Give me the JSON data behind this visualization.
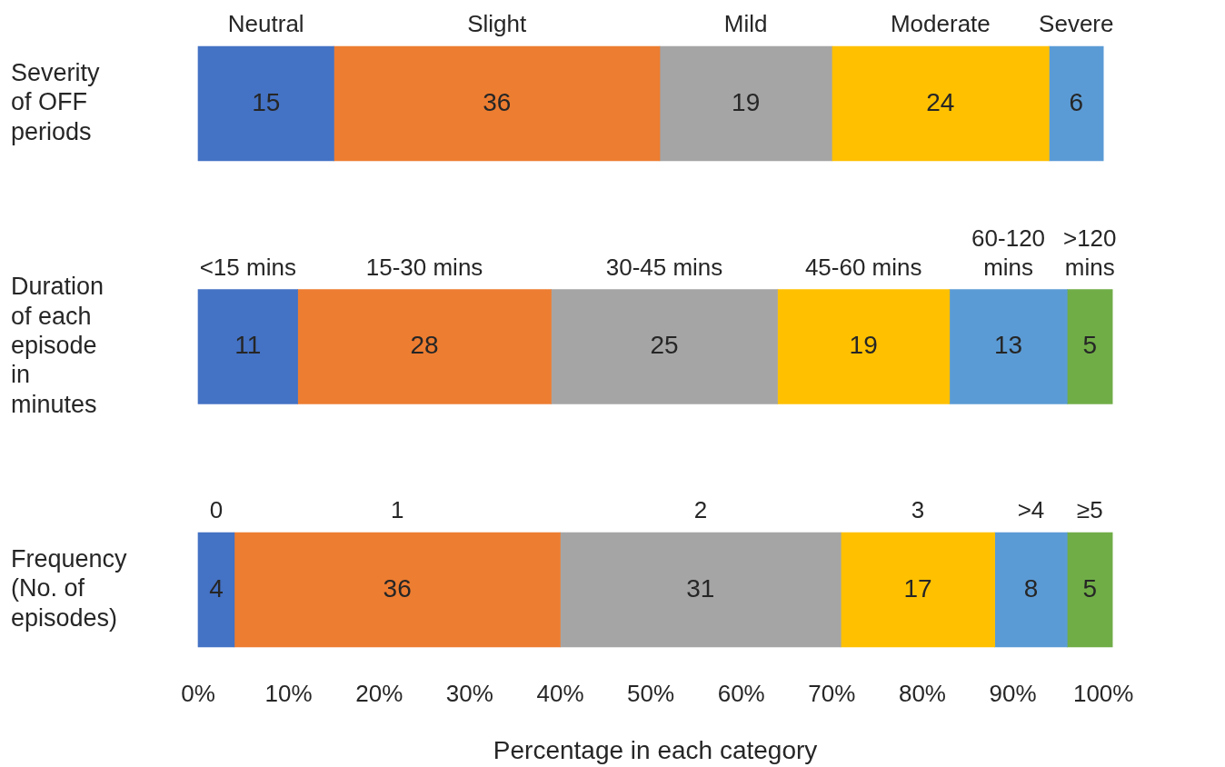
{
  "chart_data": {
    "type": "bar",
    "orientation": "horizontal",
    "stacked": true,
    "data_labels": true,
    "categories": [
      "Severity of OFF periods",
      "Duration of each episode in minutes",
      "Frequency (No. of episodes)"
    ],
    "xlim": [
      0,
      101
    ],
    "xlabel": "Percentage in each category",
    "xticks": [
      {
        "value": 0,
        "label": "0%"
      },
      {
        "value": 10,
        "label": "10%"
      },
      {
        "value": 20,
        "label": "20%"
      },
      {
        "value": 30,
        "label": "30%"
      },
      {
        "value": 40,
        "label": "40%"
      },
      {
        "value": 50,
        "label": "50%"
      },
      {
        "value": 60,
        "label": "60%"
      },
      {
        "value": 70,
        "label": "70%"
      },
      {
        "value": 80,
        "label": "80%"
      },
      {
        "value": 90,
        "label": "90%"
      },
      {
        "value": 100,
        "label": "100%"
      }
    ],
    "series": [
      {
        "color": "#4472c4",
        "values": [
          15,
          11,
          4
        ]
      },
      {
        "color": "#ed7d31",
        "values": [
          36,
          28,
          36
        ]
      },
      {
        "color": "#a5a5a5",
        "values": [
          19,
          25,
          31
        ]
      },
      {
        "color": "#ffc000",
        "values": [
          24,
          19,
          17
        ]
      },
      {
        "color": "#5b9bd5",
        "values": [
          6,
          13,
          8
        ]
      },
      {
        "color": "#70ad47",
        "values": [
          null,
          5,
          5
        ]
      }
    ],
    "annotations": [
      "Neutral",
      "Slight",
      "Mild",
      "Moderate",
      "Severe",
      "<15 mins",
      "15-30 mins",
      "30-45 mins",
      "45-60 mins",
      "60-120 mins",
      ">120 mins",
      "0",
      "1",
      "2",
      "3",
      ">4",
      "≥5"
    ]
  }
}
